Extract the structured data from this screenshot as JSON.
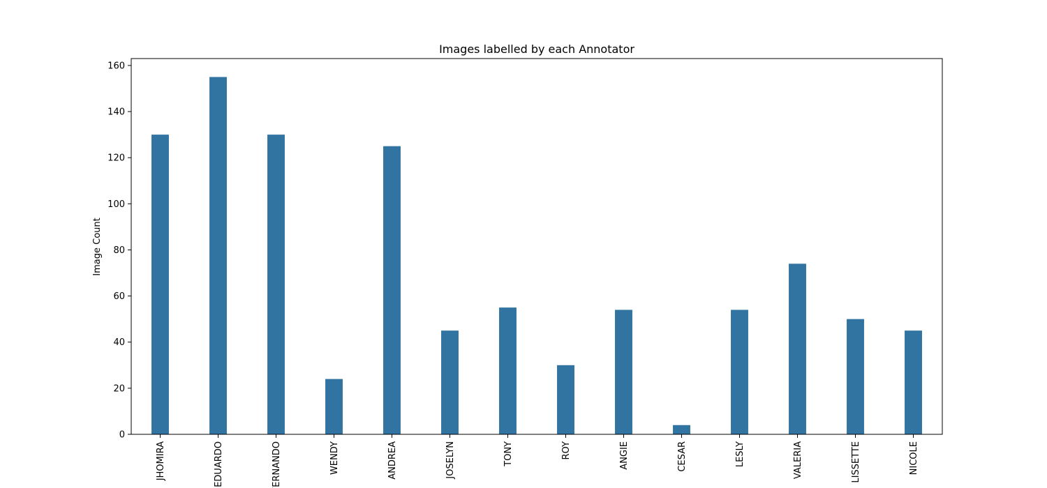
{
  "chart_data": {
    "type": "bar",
    "title": "Images labelled by each Annotator",
    "xlabel": "",
    "ylabel": "Image Count",
    "categories": [
      "JHOMIRA",
      "EDUARDO",
      "FERNANDO",
      "WENDY",
      "ANDREA",
      "JOSELYN",
      "TONY",
      "ROY",
      "ANGIE",
      "CESAR",
      "LESLY",
      "VALERIA",
      "LISSETTE",
      "NICOLE"
    ],
    "values": [
      130,
      155,
      130,
      24,
      125,
      45,
      55,
      30,
      54,
      4,
      54,
      74,
      50,
      45
    ],
    "ylim": [
      0,
      163
    ],
    "yticks": [
      0,
      20,
      40,
      60,
      80,
      100,
      120,
      140,
      160
    ],
    "bar_color": "#3274a1",
    "grid": false,
    "legend": "none",
    "xtick_rotation": 90
  }
}
